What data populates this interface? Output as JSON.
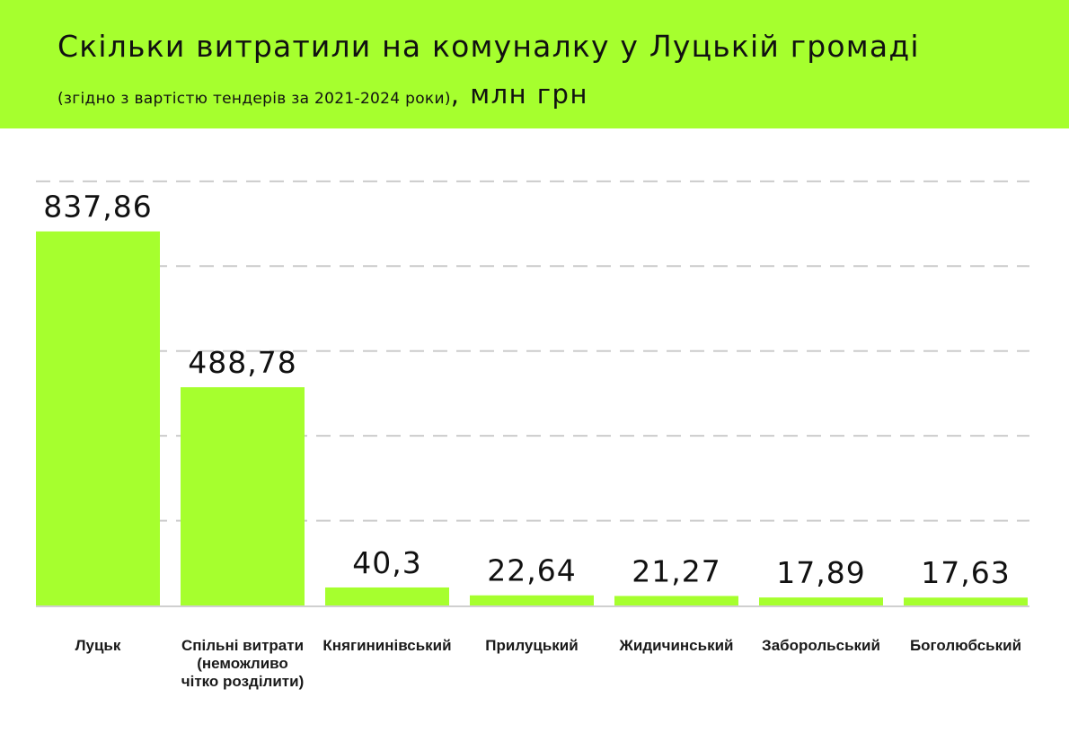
{
  "header": {
    "title": "Скільки витратили на комуналку у Луцькій громаді",
    "subtitle": "(згідно з вартістю тендерів за 2021-2024 роки)",
    "unit": ", млн грн"
  },
  "colors": {
    "accent": "#a6ff2e",
    "bar": "#a6ff2e",
    "grid": "#cccccc",
    "baseline": "#d0d0d0",
    "text": "#111111"
  },
  "chart_data": {
    "type": "bar",
    "title": "Скільки витратили на комуналку у Луцькій громаді",
    "subtitle": "(згідно з вартістю тендерів за 2021-2024 роки), млн грн",
    "categories": [
      [
        "Луцьк"
      ],
      [
        "Спільні витрати",
        "(неможливо",
        "чітко розділити)"
      ],
      [
        "Княгининівський"
      ],
      [
        "Прилуцький"
      ],
      [
        "Жидичинський"
      ],
      [
        "Заборольський"
      ],
      [
        "Боголюбський"
      ]
    ],
    "values": [
      837.86,
      488.78,
      40.3,
      22.64,
      21.27,
      17.89,
      17.63
    ],
    "value_labels": [
      "837,86",
      "488,78",
      "40,3",
      "22,64",
      "21,27",
      "17,89",
      "17,63"
    ],
    "xlabel": "",
    "ylabel": "",
    "ylim": [
      0,
      900
    ],
    "grid": true,
    "grid_style": "dashed",
    "legend": "none"
  }
}
